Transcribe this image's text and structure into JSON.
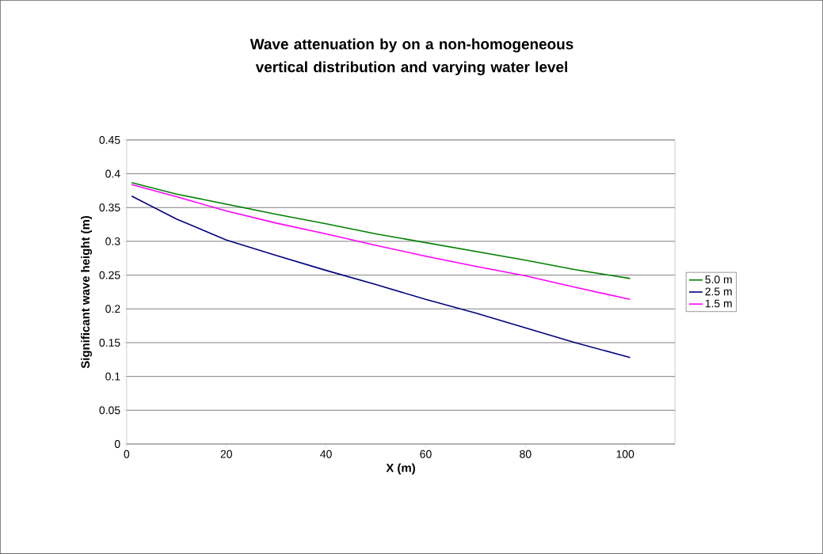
{
  "chart_data": {
    "type": "line",
    "title": "Wave attenuation by on a non-homogeneous vertical distribution and varying water level",
    "xlabel": "X (m)",
    "ylabel": "Significant wave height (m)",
    "x": [
      1,
      10,
      20,
      30,
      40,
      50,
      60,
      70,
      80,
      90,
      101
    ],
    "series": [
      {
        "name": "5.0 m",
        "color": "#008000",
        "values": [
          0.387,
          0.37,
          0.355,
          0.34,
          0.326,
          0.311,
          0.298,
          0.285,
          0.272,
          0.258,
          0.245
        ]
      },
      {
        "name": "2.5 m",
        "color": "#000080",
        "values": [
          0.367,
          0.333,
          0.302,
          0.279,
          0.257,
          0.236,
          0.214,
          0.194,
          0.172,
          0.15,
          0.128
        ]
      },
      {
        "name": "1.5 m",
        "color": "#ff00ff",
        "values": [
          0.384,
          0.366,
          0.345,
          0.327,
          0.311,
          0.294,
          0.278,
          0.263,
          0.249,
          0.232,
          0.214
        ]
      }
    ],
    "xlim": [
      0,
      110
    ],
    "ylim": [
      0,
      0.45
    ],
    "xticks": [
      0,
      20,
      40,
      60,
      80,
      100
    ],
    "yticks": [
      0,
      0.05,
      0.1,
      0.15,
      0.2,
      0.25,
      0.3,
      0.35,
      0.4,
      0.45
    ],
    "grid": "y",
    "legend": "right",
    "marker": "none",
    "line_style": "solid"
  }
}
